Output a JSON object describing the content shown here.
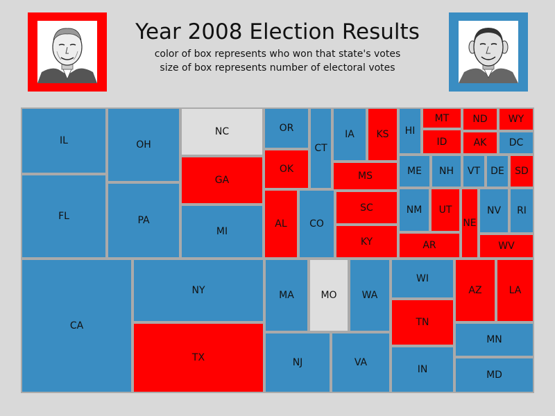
{
  "header": {
    "title": "Year 2008 Election Results",
    "subtitle1": "color of box represents who won that state's votes",
    "subtitle2": "size of box represents number of electoral votes"
  },
  "colors": {
    "republican": "#ff0000",
    "democrat": "#3a8dc2",
    "undecided": "#dedede",
    "border": "#aaaaaa",
    "background": "#d9d9d9"
  },
  "portraits": {
    "left": {
      "icon": "mccain-portrait",
      "frame_color": "#ff0000"
    },
    "right": {
      "icon": "obama-portrait",
      "frame_color": "#3a8dc2"
    }
  },
  "chart_data": {
    "type": "treemap",
    "encoding": {
      "color": "winner of state's votes",
      "size": "electoral votes"
    },
    "states": [
      {
        "label": "CA",
        "electoral_votes": 55,
        "winner": "democrat"
      },
      {
        "label": "TX",
        "electoral_votes": 34,
        "winner": "republican"
      },
      {
        "label": "NY",
        "electoral_votes": 31,
        "winner": "democrat"
      },
      {
        "label": "FL",
        "electoral_votes": 27,
        "winner": "democrat"
      },
      {
        "label": "IL",
        "electoral_votes": 21,
        "winner": "democrat"
      },
      {
        "label": "PA",
        "electoral_votes": 21,
        "winner": "democrat"
      },
      {
        "label": "OH",
        "electoral_votes": 20,
        "winner": "democrat"
      },
      {
        "label": "MI",
        "electoral_votes": 17,
        "winner": "democrat"
      },
      {
        "label": "GA",
        "electoral_votes": 15,
        "winner": "republican"
      },
      {
        "label": "NC",
        "electoral_votes": 15,
        "winner": "undecided"
      },
      {
        "label": "NJ",
        "electoral_votes": 15,
        "winner": "democrat"
      },
      {
        "label": "VA",
        "electoral_votes": 13,
        "winner": "democrat"
      },
      {
        "label": "MA",
        "electoral_votes": 12,
        "winner": "democrat"
      },
      {
        "label": "IN",
        "electoral_votes": 11,
        "winner": "democrat"
      },
      {
        "label": "MO",
        "electoral_votes": 11,
        "winner": "undecided"
      },
      {
        "label": "TN",
        "electoral_votes": 11,
        "winner": "republican"
      },
      {
        "label": "WA",
        "electoral_votes": 11,
        "winner": "democrat"
      },
      {
        "label": "AZ",
        "electoral_votes": 10,
        "winner": "republican"
      },
      {
        "label": "MD",
        "electoral_votes": 10,
        "winner": "democrat"
      },
      {
        "label": "MN",
        "electoral_votes": 10,
        "winner": "democrat"
      },
      {
        "label": "WI",
        "electoral_votes": 10,
        "winner": "democrat"
      },
      {
        "label": "AL",
        "electoral_votes": 9,
        "winner": "republican"
      },
      {
        "label": "CO",
        "electoral_votes": 9,
        "winner": "democrat"
      },
      {
        "label": "LA",
        "electoral_votes": 9,
        "winner": "republican"
      },
      {
        "label": "KY",
        "electoral_votes": 8,
        "winner": "republican"
      },
      {
        "label": "SC",
        "electoral_votes": 8,
        "winner": "republican"
      },
      {
        "label": "CT",
        "electoral_votes": 7,
        "winner": "democrat"
      },
      {
        "label": "IA",
        "electoral_votes": 7,
        "winner": "democrat"
      },
      {
        "label": "OK",
        "electoral_votes": 7,
        "winner": "republican"
      },
      {
        "label": "OR",
        "electoral_votes": 7,
        "winner": "democrat"
      },
      {
        "label": "AR",
        "electoral_votes": 6,
        "winner": "republican"
      },
      {
        "label": "KS",
        "electoral_votes": 6,
        "winner": "republican"
      },
      {
        "label": "MS",
        "electoral_votes": 6,
        "winner": "republican"
      },
      {
        "label": "NE",
        "electoral_votes": 5,
        "winner": "republican"
      },
      {
        "label": "NM",
        "electoral_votes": 5,
        "winner": "democrat"
      },
      {
        "label": "NV",
        "electoral_votes": 5,
        "winner": "democrat"
      },
      {
        "label": "UT",
        "electoral_votes": 5,
        "winner": "republican"
      },
      {
        "label": "WV",
        "electoral_votes": 5,
        "winner": "republican"
      },
      {
        "label": "HI",
        "electoral_votes": 4,
        "winner": "democrat"
      },
      {
        "label": "ID",
        "electoral_votes": 4,
        "winner": "republican"
      },
      {
        "label": "ME",
        "electoral_votes": 4,
        "winner": "democrat"
      },
      {
        "label": "NH",
        "electoral_votes": 4,
        "winner": "democrat"
      },
      {
        "label": "RI",
        "electoral_votes": 4,
        "winner": "democrat"
      },
      {
        "label": "AK",
        "electoral_votes": 3,
        "winner": "republican"
      },
      {
        "label": "DC",
        "electoral_votes": 3,
        "winner": "democrat"
      },
      {
        "label": "DE",
        "electoral_votes": 3,
        "winner": "democrat"
      },
      {
        "label": "MT",
        "electoral_votes": 3,
        "winner": "republican"
      },
      {
        "label": "ND",
        "electoral_votes": 3,
        "winner": "republican"
      },
      {
        "label": "SD",
        "electoral_votes": 3,
        "winner": "republican"
      },
      {
        "label": "VT",
        "electoral_votes": 3,
        "winner": "democrat"
      },
      {
        "label": "WY",
        "electoral_votes": 3,
        "winner": "republican"
      }
    ]
  }
}
